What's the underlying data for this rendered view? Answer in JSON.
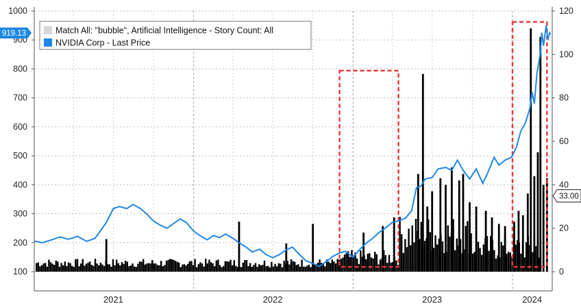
{
  "chart_data": {
    "type": "bar+line",
    "title": "",
    "legend": {
      "placement": "top-left",
      "entries": [
        {
          "label": "Match All: \"bubble\", Artificial Intelligence - Story Count: All",
          "color": "#d8d8d8",
          "type": "bar"
        },
        {
          "label": "NVIDIA Corp - Last Price",
          "color": "#1e88e5",
          "type": "line"
        }
      ]
    },
    "left_axis": {
      "min": 100,
      "max": 1000,
      "ticks": [
        "1000",
        "900",
        "800",
        "700",
        "600",
        "500",
        "400",
        "300",
        "200",
        "100"
      ]
    },
    "right_axis": {
      "min": 0,
      "max": 120,
      "ticks": [
        "120",
        "100",
        "80",
        "60",
        "40",
        "20",
        "0"
      ]
    },
    "x_axis": {
      "start": "2021-01-01",
      "end": "2024-04-01",
      "year_labels": [
        {
          "label": "2021",
          "center": "2021-07-01"
        },
        {
          "label": "2022",
          "center": "2022-07-01"
        },
        {
          "label": "2023",
          "center": "2023-07-01"
        },
        {
          "label": "2024",
          "center": "2024-02-15"
        }
      ],
      "year_boundaries": [
        "2022-01-01",
        "2023-01-01",
        "2024-01-01"
      ]
    },
    "grid": true,
    "last_value_tags": [
      {
        "label": "919.13",
        "axis": "left",
        "value": 919.13,
        "style": "blue"
      },
      {
        "label": "33.00",
        "axis": "right",
        "value": 33,
        "style": "outline"
      }
    ],
    "highlight_boxes": [
      {
        "x_start": "2022-12-01",
        "x_end": "2023-04-15",
        "color": "#e53935"
      },
      {
        "x_start": "2024-01-01",
        "x_end": "2024-03-20",
        "color": "#e53935"
      }
    ],
    "series": [
      {
        "name": "NVIDIA Corp - Last Price",
        "axis": "left",
        "color": "#1e88e5",
        "points": [
          [
            "2021-01-01",
            206
          ],
          [
            "2021-01-20",
            200
          ],
          [
            "2021-02-10",
            210
          ],
          [
            "2021-03-01",
            220
          ],
          [
            "2021-03-20",
            212
          ],
          [
            "2021-04-10",
            222
          ],
          [
            "2021-05-01",
            205
          ],
          [
            "2021-05-20",
            215
          ],
          [
            "2021-06-01",
            240
          ],
          [
            "2021-06-15",
            270
          ],
          [
            "2021-07-01",
            318
          ],
          [
            "2021-07-15",
            325
          ],
          [
            "2021-08-01",
            318
          ],
          [
            "2021-08-15",
            332
          ],
          [
            "2021-09-01",
            318
          ],
          [
            "2021-09-15",
            300
          ],
          [
            "2021-10-01",
            275
          ],
          [
            "2021-10-15",
            262
          ],
          [
            "2021-11-01",
            250
          ],
          [
            "2021-11-15",
            265
          ],
          [
            "2021-12-01",
            282
          ],
          [
            "2021-12-15",
            270
          ],
          [
            "2022-01-01",
            240
          ],
          [
            "2022-01-15",
            225
          ],
          [
            "2022-02-01",
            210
          ],
          [
            "2022-02-15",
            225
          ],
          [
            "2022-03-01",
            218
          ],
          [
            "2022-03-15",
            230
          ],
          [
            "2022-04-01",
            215
          ],
          [
            "2022-04-15",
            200
          ],
          [
            "2022-05-01",
            185
          ],
          [
            "2022-05-15",
            168
          ],
          [
            "2022-06-01",
            178
          ],
          [
            "2022-06-15",
            160
          ],
          [
            "2022-07-01",
            148
          ],
          [
            "2022-07-15",
            158
          ],
          [
            "2022-08-01",
            175
          ],
          [
            "2022-08-15",
            185
          ],
          [
            "2022-09-01",
            158
          ],
          [
            "2022-09-15",
            138
          ],
          [
            "2022-10-01",
            128
          ],
          [
            "2022-10-15",
            118
          ],
          [
            "2022-11-01",
            135
          ],
          [
            "2022-11-15",
            152
          ],
          [
            "2022-12-01",
            165
          ],
          [
            "2022-12-15",
            170
          ],
          [
            "2023-01-01",
            150
          ],
          [
            "2023-01-15",
            175
          ],
          [
            "2023-02-01",
            200
          ],
          [
            "2023-02-15",
            215
          ],
          [
            "2023-03-01",
            235
          ],
          [
            "2023-03-15",
            250
          ],
          [
            "2023-04-01",
            270
          ],
          [
            "2023-04-15",
            275
          ],
          [
            "2023-05-01",
            285
          ],
          [
            "2023-05-15",
            310
          ],
          [
            "2023-05-26",
            390
          ],
          [
            "2023-06-05",
            395
          ],
          [
            "2023-06-15",
            420
          ],
          [
            "2023-07-01",
            425
          ],
          [
            "2023-07-15",
            455
          ],
          [
            "2023-08-01",
            460
          ],
          [
            "2023-08-15",
            450
          ],
          [
            "2023-08-28",
            485
          ],
          [
            "2023-09-10",
            450
          ],
          [
            "2023-09-25",
            420
          ],
          [
            "2023-10-10",
            455
          ],
          [
            "2023-10-25",
            405
          ],
          [
            "2023-11-05",
            440
          ],
          [
            "2023-11-20",
            495
          ],
          [
            "2023-12-01",
            468
          ],
          [
            "2023-12-15",
            485
          ],
          [
            "2023-12-30",
            495
          ],
          [
            "2024-01-10",
            530
          ],
          [
            "2024-01-20",
            585
          ],
          [
            "2024-01-31",
            615
          ],
          [
            "2024-02-10",
            665
          ],
          [
            "2024-02-15",
            720
          ],
          [
            "2024-02-20",
            680
          ],
          [
            "2024-02-26",
            785
          ],
          [
            "2024-03-05",
            855
          ],
          [
            "2024-03-08",
            925
          ],
          [
            "2024-03-12",
            880
          ],
          [
            "2024-03-18",
            950
          ],
          [
            "2024-03-22",
            900
          ],
          [
            "2024-03-26",
            925
          ],
          [
            "2024-03-28",
            919.13
          ]
        ]
      },
      {
        "name": "Match All: \"bubble\", Artificial Intelligence - Story Count: All",
        "axis": "right",
        "color": "#000000",
        "spikes": [
          [
            "2021-06-15",
            15
          ],
          [
            "2022-04-15",
            23
          ],
          [
            "2022-08-01",
            13
          ],
          [
            "2022-10-01",
            22
          ],
          [
            "2023-01-25",
            18
          ],
          [
            "2023-03-10",
            21
          ],
          [
            "2023-04-05",
            25
          ],
          [
            "2023-05-30",
            45
          ],
          [
            "2023-06-10",
            91
          ],
          [
            "2023-06-20",
            30
          ],
          [
            "2023-07-01",
            37
          ],
          [
            "2023-07-20",
            43
          ],
          [
            "2023-08-01",
            40
          ],
          [
            "2023-08-15",
            48
          ],
          [
            "2023-09-01",
            42
          ],
          [
            "2023-09-10",
            45
          ],
          [
            "2023-09-25",
            32
          ],
          [
            "2023-10-10",
            30
          ],
          [
            "2023-11-01",
            28
          ],
          [
            "2023-11-15",
            25
          ],
          [
            "2023-12-01",
            22
          ],
          [
            "2023-12-15",
            21
          ],
          [
            "2024-01-05",
            23
          ],
          [
            "2024-01-15",
            28
          ],
          [
            "2024-01-25",
            26
          ],
          [
            "2024-02-05",
            36
          ],
          [
            "2024-02-12",
            112
          ],
          [
            "2024-02-20",
            44
          ],
          [
            "2024-02-28",
            55
          ],
          [
            "2024-03-05",
            108
          ],
          [
            "2024-03-12",
            40
          ],
          [
            "2024-03-20",
            43
          ]
        ]
      }
    ]
  }
}
